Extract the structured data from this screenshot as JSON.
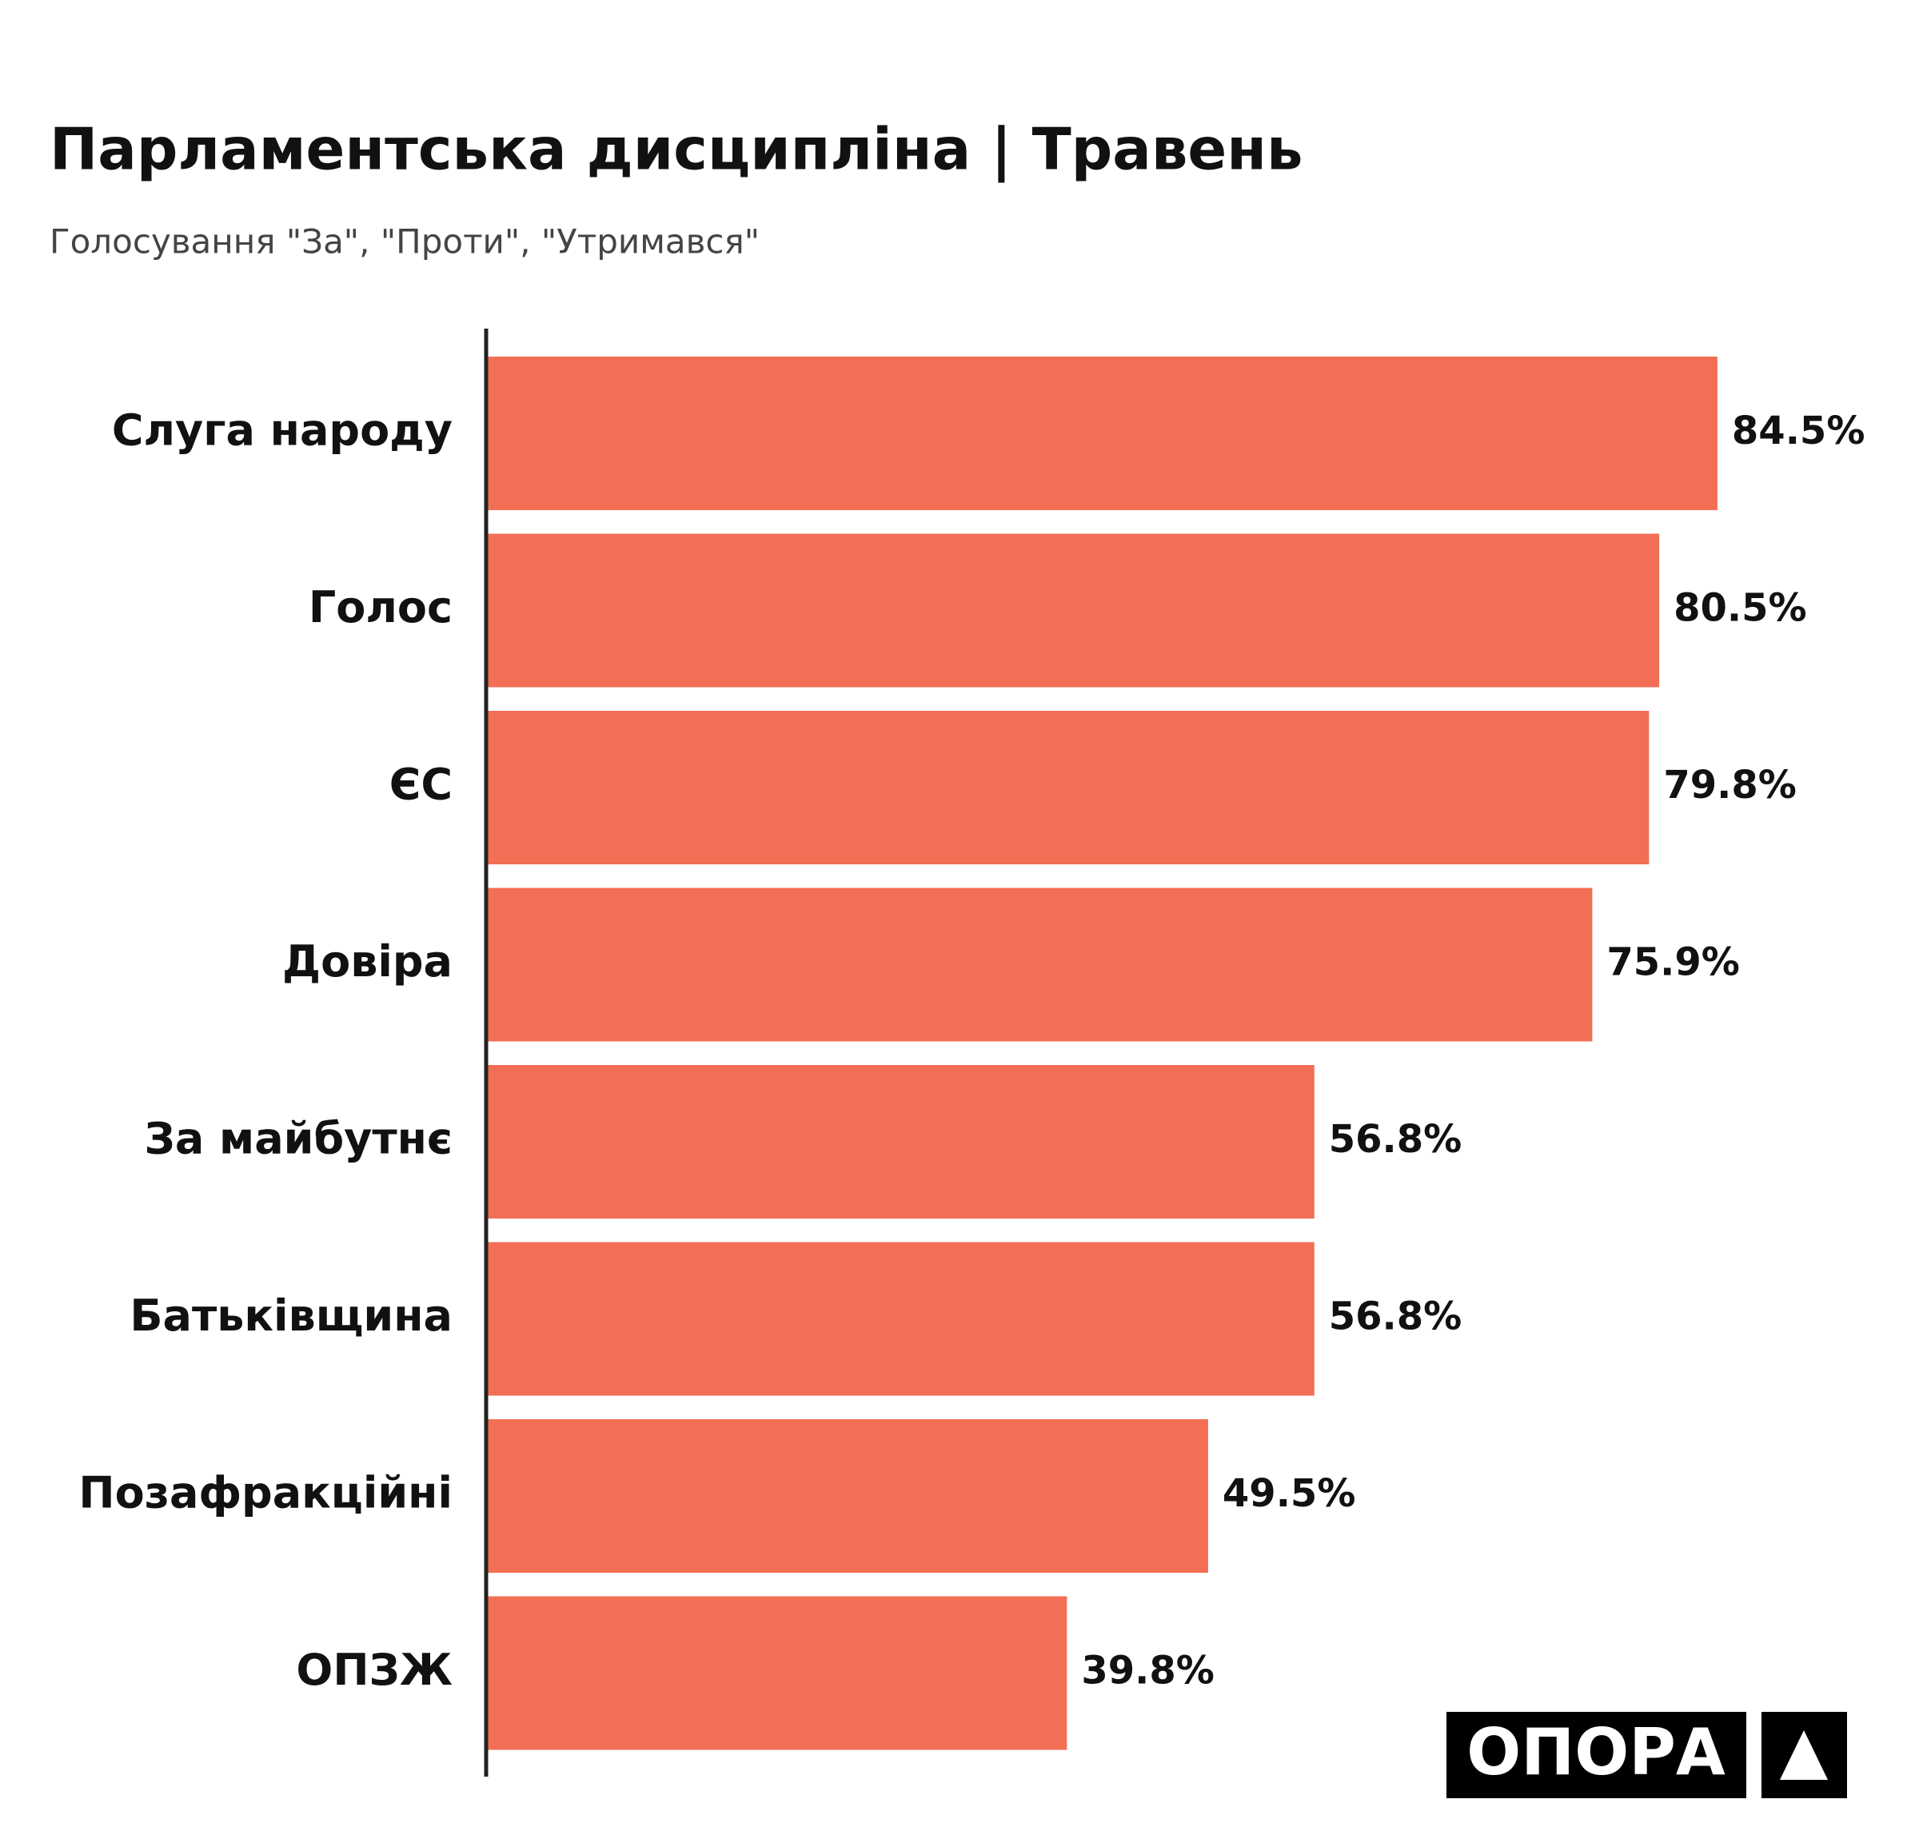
{
  "chart_data": {
    "type": "bar",
    "orientation": "horizontal",
    "title": "Парламентська дисципліна | Травень",
    "subtitle": "Голосування \"За\", \"Проти\", \"Утримався\"",
    "categories": [
      "Слуга народу",
      "Голос",
      "ЄС",
      "Довіра",
      "За майбутнє",
      "Батьківщина",
      "Позафракційні",
      "ОПЗЖ"
    ],
    "values": [
      84.5,
      80.5,
      79.8,
      75.9,
      56.8,
      56.8,
      49.5,
      39.8
    ],
    "value_labels": [
      "84.5%",
      "80.5%",
      "79.8%",
      "75.9%",
      "56.8%",
      "56.8%",
      "49.5%",
      "39.8%"
    ],
    "color": "#f26e55"
  },
  "logo": "ОПОРА"
}
